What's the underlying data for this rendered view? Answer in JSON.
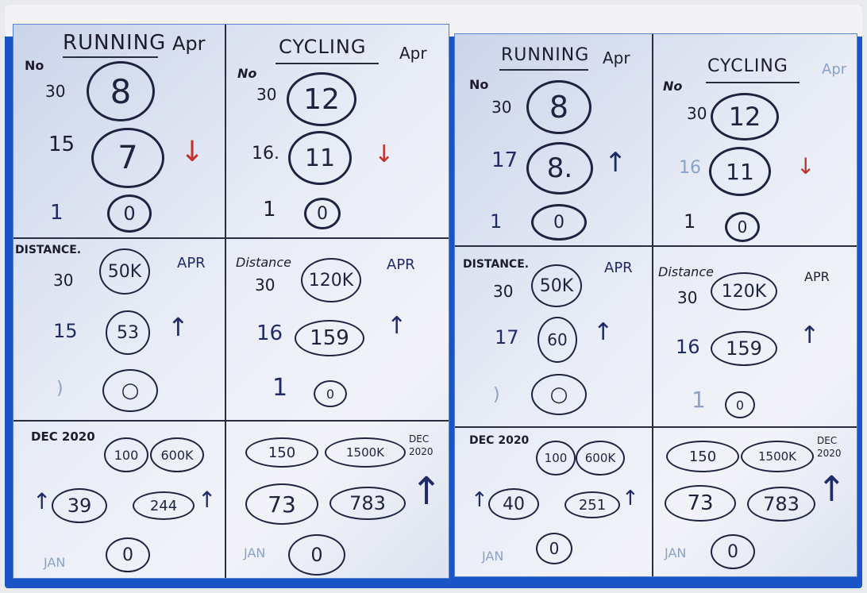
{
  "boards": [
    {
      "running": {
        "title": "RUNNING",
        "month": "Apr",
        "no_label": "No",
        "rows": [
          {
            "day": "30",
            "value": "8"
          },
          {
            "day": "15",
            "value": "7",
            "trend": "↓"
          },
          {
            "day": "1",
            "value": "0"
          }
        ],
        "distance": {
          "label": "DISTANCE.",
          "month": "APR",
          "rows": [
            {
              "day": "30",
              "value": "50K"
            },
            {
              "day": "15",
              "value": "53",
              "trend": "↑"
            },
            {
              "day": ")",
              "value": "○"
            }
          ]
        },
        "dec": {
          "label": "DEC 2020",
          "a": "100",
          "b": "600K"
        },
        "current": {
          "a": "39",
          "b": "244"
        },
        "jan": {
          "label": "JAN",
          "value": "0"
        }
      },
      "cycling": {
        "title": "CYCLING",
        "month": "Apr",
        "no_label": "No",
        "rows": [
          {
            "day": "30",
            "value": "12"
          },
          {
            "day": "16.",
            "value": "11",
            "trend": "↓"
          },
          {
            "day": "1",
            "value": "0"
          }
        ],
        "distance": {
          "label": "Distance",
          "month": "APR",
          "rows": [
            {
              "day": "30",
              "value": "120K"
            },
            {
              "day": "16",
              "value": "159",
              "trend": "↑"
            },
            {
              "day": "1",
              "value": "0"
            }
          ]
        },
        "dec": {
          "label": "DEC 2020",
          "a": "150",
          "b": "1500K"
        },
        "current": {
          "a": "73",
          "b": "783"
        },
        "jan": {
          "label": "JAN",
          "value": "0"
        }
      }
    },
    {
      "running": {
        "title": "RUNNING",
        "month": "Apr",
        "no_label": "No",
        "rows": [
          {
            "day": "30",
            "value": "8"
          },
          {
            "day": "17",
            "value": "8.",
            "trend": "↑"
          },
          {
            "day": "1",
            "value": "0"
          }
        ],
        "distance": {
          "label": "DISTANCE.",
          "month": "APR",
          "rows": [
            {
              "day": "30",
              "value": "50K"
            },
            {
              "day": "17",
              "value": "60",
              "trend": "↑"
            },
            {
              "day": ")",
              "value": "○"
            }
          ]
        },
        "dec": {
          "label": "DEC 2020",
          "a": "100",
          "b": "600K"
        },
        "current": {
          "a": "40",
          "b": "251"
        },
        "jan": {
          "label": "JAN",
          "value": "0"
        }
      },
      "cycling": {
        "title": "CYCLING",
        "month": "Apr",
        "no_label": "No",
        "rows": [
          {
            "day": "30",
            "value": "12"
          },
          {
            "day": "16",
            "value": "11",
            "trend": "↓"
          },
          {
            "day": "1",
            "value": "0"
          }
        ],
        "distance": {
          "label": "Distance",
          "month": "APR",
          "rows": [
            {
              "day": "30",
              "value": "120K"
            },
            {
              "day": "16",
              "value": "159",
              "trend": "↑"
            },
            {
              "day": "1",
              "value": "0"
            }
          ]
        },
        "dec": {
          "label": "DEC 2020",
          "a": "150",
          "b": "1500K"
        },
        "current": {
          "a": "73",
          "b": "783"
        },
        "jan": {
          "label": "JAN",
          "value": "0"
        }
      }
    }
  ]
}
